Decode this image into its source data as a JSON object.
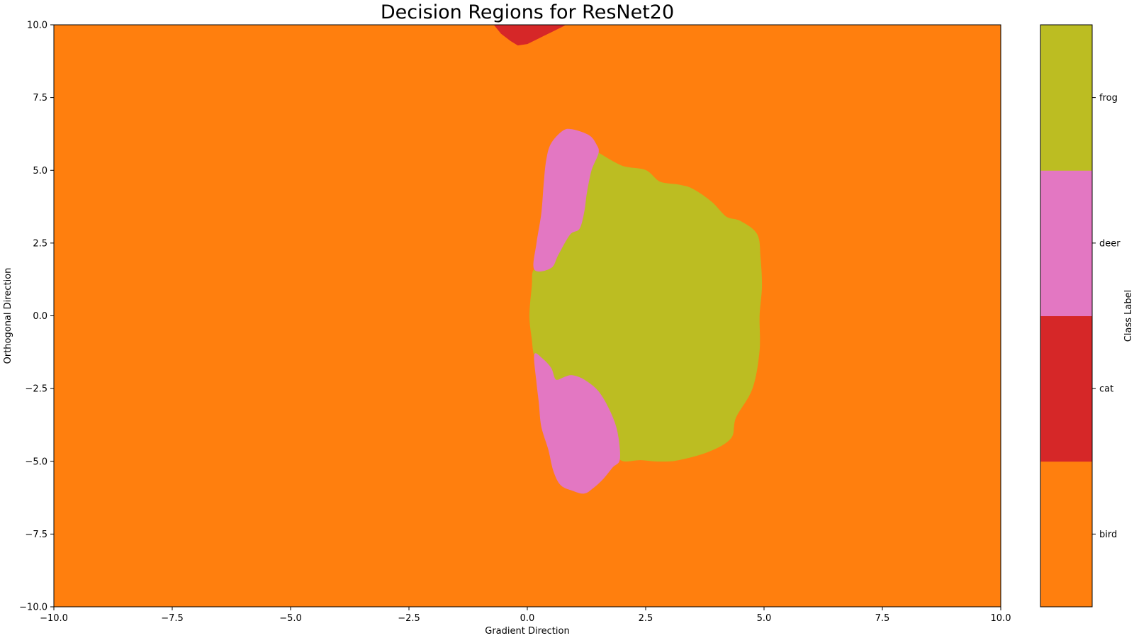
{
  "chart_data": {
    "type": "heatmap",
    "title": "Decision Regions for ResNet20",
    "xlabel": "Gradient Direction",
    "ylabel": "Orthogonal Direction",
    "xlim": [
      -10.0,
      10.0
    ],
    "ylim": [
      -10.0,
      10.0
    ],
    "xticks": [
      -10.0,
      -7.5,
      -5.0,
      -2.5,
      0.0,
      2.5,
      5.0,
      7.5,
      10.0
    ],
    "xtick_labels": [
      "−10.0",
      "−7.5",
      "−5.0",
      "−2.5",
      "0.0",
      "2.5",
      "5.0",
      "7.5",
      "10.0"
    ],
    "yticks": [
      -10.0,
      -7.5,
      -5.0,
      -2.5,
      0.0,
      2.5,
      5.0,
      7.5,
      10.0
    ],
    "ytick_labels": [
      "−10.0",
      "−7.5",
      "−5.0",
      "−2.5",
      "0.0",
      "2.5",
      "5.0",
      "7.5",
      "10.0"
    ],
    "grid": false,
    "background_class": "bird",
    "classes": [
      {
        "name": "bird",
        "color": "#ff7f0e"
      },
      {
        "name": "cat",
        "color": "#d62728"
      },
      {
        "name": "deer",
        "color": "#e377c2"
      },
      {
        "name": "frog",
        "color": "#bcbd22"
      }
    ],
    "colorbar": {
      "label": "Class Label",
      "labels": [
        "bird",
        "cat",
        "deer",
        "frog"
      ]
    },
    "regions": [
      {
        "class": "cat",
        "polygon": [
          [
            -0.7,
            10.0
          ],
          [
            -0.55,
            9.7
          ],
          [
            -0.35,
            9.45
          ],
          [
            -0.2,
            9.3
          ],
          [
            0.0,
            9.35
          ],
          [
            0.25,
            9.55
          ],
          [
            0.5,
            9.75
          ],
          [
            0.75,
            9.95
          ],
          [
            0.8,
            10.0
          ]
        ]
      },
      {
        "class": "frog",
        "polygon": [
          [
            1.5,
            5.6
          ],
          [
            2.0,
            5.15
          ],
          [
            2.5,
            5.0
          ],
          [
            2.8,
            4.6
          ],
          [
            3.2,
            4.5
          ],
          [
            3.5,
            4.35
          ],
          [
            3.9,
            3.9
          ],
          [
            4.2,
            3.4
          ],
          [
            4.5,
            3.25
          ],
          [
            4.85,
            2.8
          ],
          [
            4.92,
            2.0
          ],
          [
            4.95,
            1.0
          ],
          [
            4.9,
            0.0
          ],
          [
            4.9,
            -1.2
          ],
          [
            4.75,
            -2.5
          ],
          [
            4.4,
            -3.5
          ],
          [
            4.3,
            -4.2
          ],
          [
            3.85,
            -4.65
          ],
          [
            3.2,
            -4.95
          ],
          [
            2.8,
            -5.0
          ],
          [
            2.4,
            -4.95
          ],
          [
            1.95,
            -4.92
          ],
          [
            1.9,
            -4.0
          ],
          [
            1.75,
            -3.3
          ],
          [
            1.5,
            -2.6
          ],
          [
            1.2,
            -2.2
          ],
          [
            0.95,
            -2.05
          ],
          [
            0.8,
            -2.1
          ],
          [
            0.6,
            -2.2
          ],
          [
            0.5,
            -1.8
          ],
          [
            0.3,
            -1.45
          ],
          [
            0.15,
            -1.35
          ],
          [
            0.1,
            -0.8
          ],
          [
            0.05,
            0.0
          ],
          [
            0.1,
            1.0
          ],
          [
            0.15,
            1.6
          ],
          [
            0.5,
            1.65
          ],
          [
            0.65,
            2.1
          ],
          [
            0.9,
            2.8
          ],
          [
            1.1,
            3.0
          ],
          [
            1.2,
            3.6
          ],
          [
            1.25,
            4.2
          ],
          [
            1.35,
            5.0
          ],
          [
            1.5,
            5.6
          ]
        ]
      },
      {
        "class": "deer",
        "polygon": [
          [
            0.5,
            5.9
          ],
          [
            0.75,
            6.35
          ],
          [
            0.95,
            6.4
          ],
          [
            1.3,
            6.2
          ],
          [
            1.45,
            5.9
          ],
          [
            1.5,
            5.6
          ],
          [
            1.35,
            5.0
          ],
          [
            1.25,
            4.2
          ],
          [
            1.2,
            3.6
          ],
          [
            1.1,
            3.0
          ],
          [
            0.9,
            2.8
          ],
          [
            0.65,
            2.1
          ],
          [
            0.5,
            1.65
          ],
          [
            0.15,
            1.6
          ],
          [
            0.2,
            2.5
          ],
          [
            0.3,
            3.5
          ],
          [
            0.35,
            4.5
          ],
          [
            0.4,
            5.3
          ]
        ]
      },
      {
        "class": "deer",
        "polygon": [
          [
            0.15,
            -1.35
          ],
          [
            0.3,
            -1.45
          ],
          [
            0.5,
            -1.8
          ],
          [
            0.6,
            -2.2
          ],
          [
            0.8,
            -2.1
          ],
          [
            0.95,
            -2.05
          ],
          [
            1.2,
            -2.2
          ],
          [
            1.5,
            -2.6
          ],
          [
            1.75,
            -3.3
          ],
          [
            1.9,
            -4.0
          ],
          [
            1.95,
            -4.92
          ],
          [
            1.8,
            -5.2
          ],
          [
            1.6,
            -5.6
          ],
          [
            1.4,
            -5.9
          ],
          [
            1.2,
            -6.1
          ],
          [
            0.95,
            -6.0
          ],
          [
            0.7,
            -5.8
          ],
          [
            0.55,
            -5.3
          ],
          [
            0.45,
            -4.6
          ],
          [
            0.3,
            -3.8
          ],
          [
            0.25,
            -3.0
          ],
          [
            0.2,
            -2.3
          ]
        ]
      }
    ]
  }
}
